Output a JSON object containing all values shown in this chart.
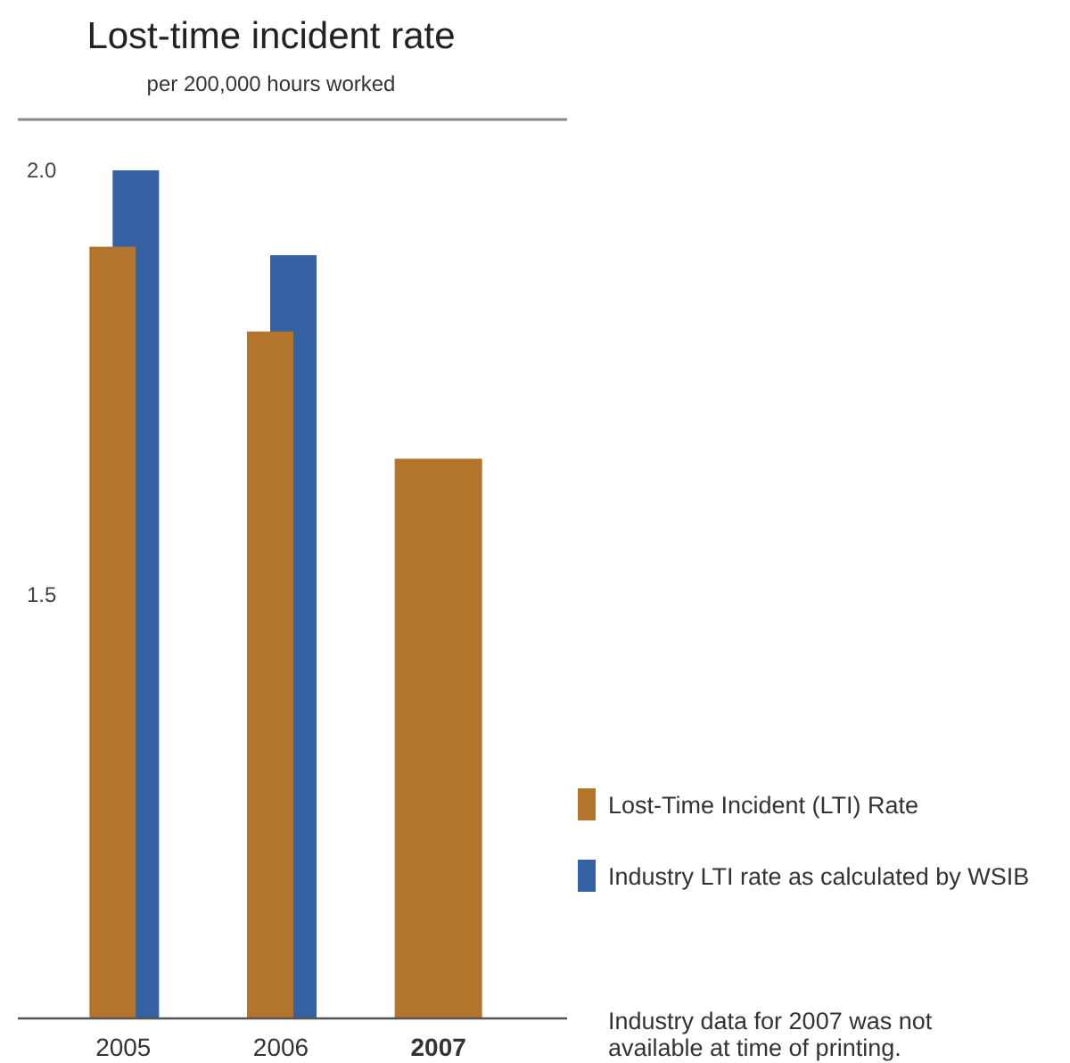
{
  "chart_data": {
    "type": "bar",
    "title": "Lost-time incident rate",
    "subtitle": "per 200,000 hours worked",
    "categories": [
      "2005",
      "2006",
      "2007"
    ],
    "series": [
      {
        "name": "Lost-Time Incident (LTI) Rate",
        "color": "#b3742c",
        "values": [
          1.91,
          1.81,
          1.66
        ]
      },
      {
        "name": "Industry LTI rate as calculated by WSIB",
        "color": "#3361a3",
        "values": [
          2.0,
          1.9,
          null
        ]
      }
    ],
    "ylim": [
      1.0,
      2.06
    ],
    "yticks": [
      {
        "value": 2.0,
        "label": "2.0"
      },
      {
        "value": 1.5,
        "label": "1.5"
      }
    ],
    "grid": false,
    "legend": "right",
    "annotations": [
      "Industry data for 2007 was not available at time of printing."
    ]
  }
}
